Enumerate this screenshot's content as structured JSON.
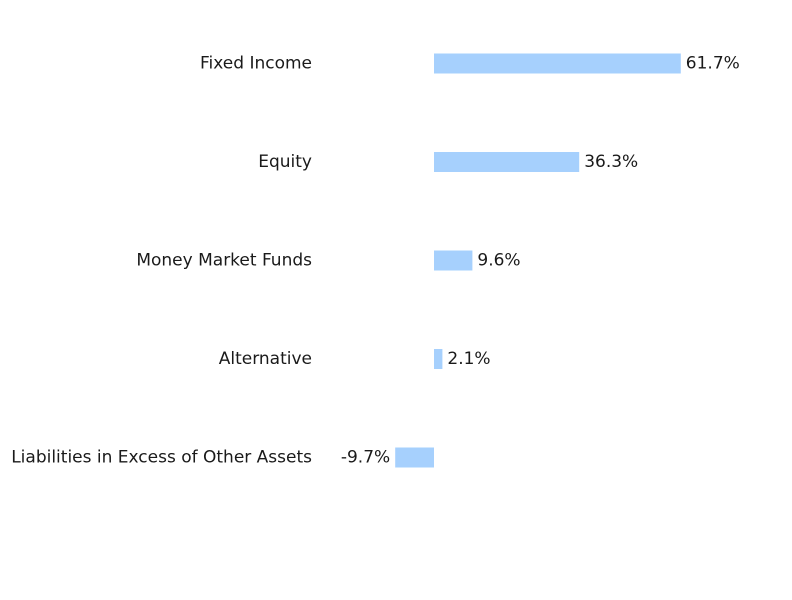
{
  "chart_data": {
    "type": "bar",
    "orientation": "horizontal",
    "categories": [
      "Fixed Income",
      "Equity",
      "Money Market Funds",
      "Alternative",
      "Liabilities in Excess of Other Assets"
    ],
    "values": [
      61.7,
      36.3,
      9.6,
      2.1,
      -9.7
    ],
    "value_labels": [
      "61.7%",
      "36.3%",
      "9.6%",
      "2.1%",
      "-9.7%"
    ],
    "unit": "%",
    "title": "",
    "xlabel": "",
    "ylabel": "",
    "grid": false,
    "legend": "none",
    "bar_color": "#a6d0fd",
    "text_color": "#1a1a1a"
  }
}
